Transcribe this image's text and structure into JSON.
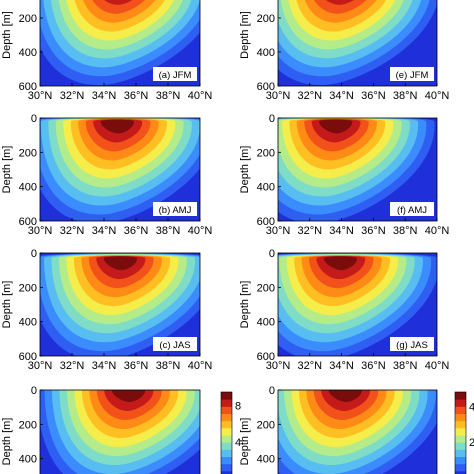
{
  "figure": {
    "ylabel": "Depth [m]",
    "x_ticks": [
      "30°N",
      "32°N",
      "34°N",
      "36°N",
      "38°N",
      "40°N"
    ],
    "y_ticks": [
      "0",
      "200",
      "400",
      "600"
    ]
  },
  "colorbar_left": {
    "ticks": [
      "8",
      "4"
    ],
    "tick_values": [
      8,
      4
    ],
    "range": [
      0,
      9.5
    ]
  },
  "colorbar_right": {
    "ticks": [
      "4",
      "2"
    ],
    "tick_values": [
      4,
      2
    ],
    "range": [
      0,
      4.8
    ]
  },
  "chart_data": [
    {
      "type": "contourf",
      "panel_label": "(a) JFM",
      "xlabel": "",
      "ylabel": "Depth [m]",
      "xlim": [
        30,
        40
      ],
      "ylim": [
        600,
        0
      ],
      "core": {
        "lat": 35.2,
        "depth": 0
      }
    },
    {
      "type": "contourf",
      "panel_label": "(e) JFM",
      "xlabel": "",
      "ylabel": "Depth [m]",
      "xlim": [
        30,
        40
      ],
      "ylim": [
        600,
        0
      ],
      "core": {
        "lat": 34.2,
        "depth": 0
      }
    },
    {
      "type": "contourf",
      "panel_label": "(b) AMJ",
      "xlabel": "",
      "ylabel": "Depth [m]",
      "xlim": [
        30,
        40
      ],
      "ylim": [
        600,
        0
      ],
      "core": {
        "lat": 35.1,
        "depth": 20
      }
    },
    {
      "type": "contourf",
      "panel_label": "(f) AMJ",
      "xlabel": "",
      "ylabel": "Depth [m]",
      "xlim": [
        30,
        40
      ],
      "ylim": [
        600,
        0
      ],
      "core": {
        "lat": 33.9,
        "depth": 20
      }
    },
    {
      "type": "contourf",
      "panel_label": "(c) JAS",
      "xlabel": "",
      "ylabel": "Depth [m]",
      "xlim": [
        30,
        40
      ],
      "ylim": [
        600,
        0
      ],
      "core": {
        "lat": 35.3,
        "depth": 30
      }
    },
    {
      "type": "contourf",
      "panel_label": "(g) JAS",
      "xlabel": "",
      "ylabel": "Depth [m]",
      "xlim": [
        30,
        40
      ],
      "ylim": [
        600,
        0
      ],
      "core": {
        "lat": 34.2,
        "depth": 30
      }
    },
    {
      "type": "contourf",
      "panel_label": "",
      "xlabel": "",
      "ylabel": "Depth [m]",
      "xlim": [
        30,
        40
      ],
      "ylim": [
        600,
        0
      ],
      "core": {
        "lat": 35.8,
        "depth": 0
      }
    },
    {
      "type": "contourf",
      "panel_label": "",
      "xlabel": "",
      "ylabel": "Depth [m]",
      "xlim": [
        30,
        40
      ],
      "ylim": [
        600,
        0
      ],
      "core": {
        "lat": 34.5,
        "depth": 0
      }
    }
  ],
  "colors": {
    "levels": [
      "#1f2fd9",
      "#2e5ef2",
      "#3b8cff",
      "#58bdf0",
      "#7fdcc7",
      "#b4ec8a",
      "#f5ee4a",
      "#ffbf22",
      "#ff8a16",
      "#f2521a",
      "#c41a1a",
      "#7a0c0c"
    ]
  }
}
